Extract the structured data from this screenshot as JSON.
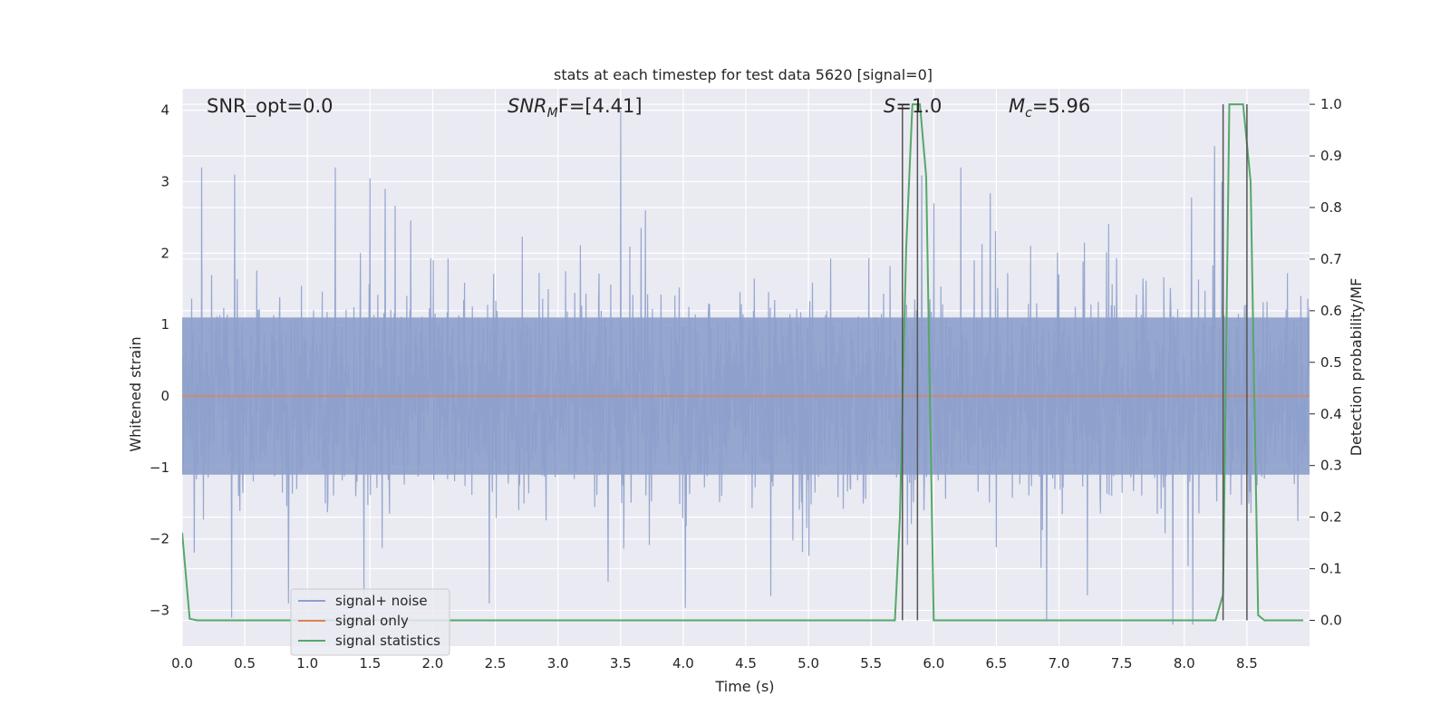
{
  "chart_data": {
    "type": "line",
    "title": "stats at each timestep for test data 5620 [signal=0]",
    "xlabel": "Time (s)",
    "ylabel_left": "Whitened strain",
    "ylabel_right": "Detection probability/MF",
    "xlim": [
      0.0,
      9.0
    ],
    "ylim_left": [
      -3.5,
      4.3
    ],
    "ylim_right": [
      -0.05,
      1.03
    ],
    "xticks": [
      "0.0",
      "0.5",
      "1.0",
      "1.5",
      "2.0",
      "2.5",
      "3.0",
      "3.5",
      "4.0",
      "4.5",
      "5.0",
      "5.5",
      "6.0",
      "6.5",
      "7.0",
      "7.5",
      "8.0",
      "8.5"
    ],
    "xtick_values": [
      0,
      0.5,
      1,
      1.5,
      2,
      2.5,
      3,
      3.5,
      4,
      4.5,
      5,
      5.5,
      6,
      6.5,
      7,
      7.5,
      8,
      8.5
    ],
    "yticks_left": [
      "4",
      "3",
      "2",
      "1",
      "0",
      "−1",
      "−2",
      "−3"
    ],
    "ytick_values_left": [
      4,
      3,
      2,
      1,
      0,
      -1,
      -2,
      -3
    ],
    "yticks_right": [
      "1.0",
      "0.9",
      "0.8",
      "0.7",
      "0.6",
      "0.5",
      "0.4",
      "0.3",
      "0.2",
      "0.1",
      "0.0"
    ],
    "ytick_values_right": [
      1.0,
      0.9,
      0.8,
      0.7,
      0.6,
      0.5,
      0.4,
      0.3,
      0.2,
      0.1,
      0.0
    ],
    "grid": true,
    "annotations": {
      "snr_opt": "SNR_opt=0.0",
      "snr_mf_base": "SNR",
      "snr_mf_sub": "M",
      "snr_mf_rest": "F=[4.41]",
      "s_label": "S",
      "s_value": "=1.0",
      "mc_base": "M",
      "mc_sub": "c",
      "mc_value": "=5.96"
    },
    "legend": {
      "position": "lower-left",
      "entries": [
        "signal+ noise",
        "signal only",
        "signal statistics"
      ]
    },
    "colors": {
      "noise": "#8da0cb",
      "signal": "#dd8452",
      "stats": "#55a868",
      "vlines": "#555555",
      "background": "#eaeaf2",
      "grid": "#ffffff"
    },
    "series": [
      {
        "name": "signal+ noise",
        "axis": "left",
        "description_stats": {
          "approx_min": -3.1,
          "approx_max": 4.0,
          "envelope": 1.1
        },
        "peaks": [
          [
            0.42,
            3.1
          ],
          [
            1.5,
            3.05
          ],
          [
            3.5,
            4.0
          ],
          [
            1.62,
            2.9
          ],
          [
            3.7,
            2.6
          ],
          [
            8.24,
            3.5
          ],
          [
            8.3,
            3.0
          ],
          [
            7.91,
            -3.2
          ],
          [
            8.07,
            -3.2
          ],
          [
            6.9,
            -3.15
          ],
          [
            2.45,
            -2.9
          ],
          [
            4.7,
            -2.8
          ],
          [
            0.85,
            -2.9
          ],
          [
            1.45,
            -2.8
          ],
          [
            6.0,
            2.7
          ],
          [
            3.4,
            -2.6
          ]
        ]
      },
      {
        "name": "signal only",
        "axis": "left",
        "x": [
          0.0,
          9.0
        ],
        "y": [
          0.0,
          0.0
        ]
      },
      {
        "name": "signal statistics",
        "axis": "right",
        "x": [
          0.0,
          0.06,
          0.12,
          5.69,
          5.73,
          5.78,
          5.83,
          5.89,
          5.94,
          6.0,
          8.25,
          8.31,
          8.36,
          8.42,
          8.47,
          8.53,
          8.59,
          8.64,
          8.7,
          8.95
        ],
        "y": [
          0.17,
          0.003,
          0.0,
          0.0,
          0.2,
          0.72,
          1.0,
          1.0,
          0.86,
          0.0,
          0.0,
          0.05,
          1.0,
          1.0,
          1.0,
          0.85,
          0.01,
          0.0,
          0.0,
          0.0
        ]
      }
    ],
    "vlines": [
      {
        "x": 5.75,
        "ymin": 0.0,
        "ymax": 1.0
      },
      {
        "x": 5.87,
        "ymin": 0.0,
        "ymax": 1.0
      },
      {
        "x": 8.31,
        "ymin": 0.0,
        "ymax": 1.0
      },
      {
        "x": 8.5,
        "ymin": 0.0,
        "ymax": 1.0
      }
    ]
  }
}
